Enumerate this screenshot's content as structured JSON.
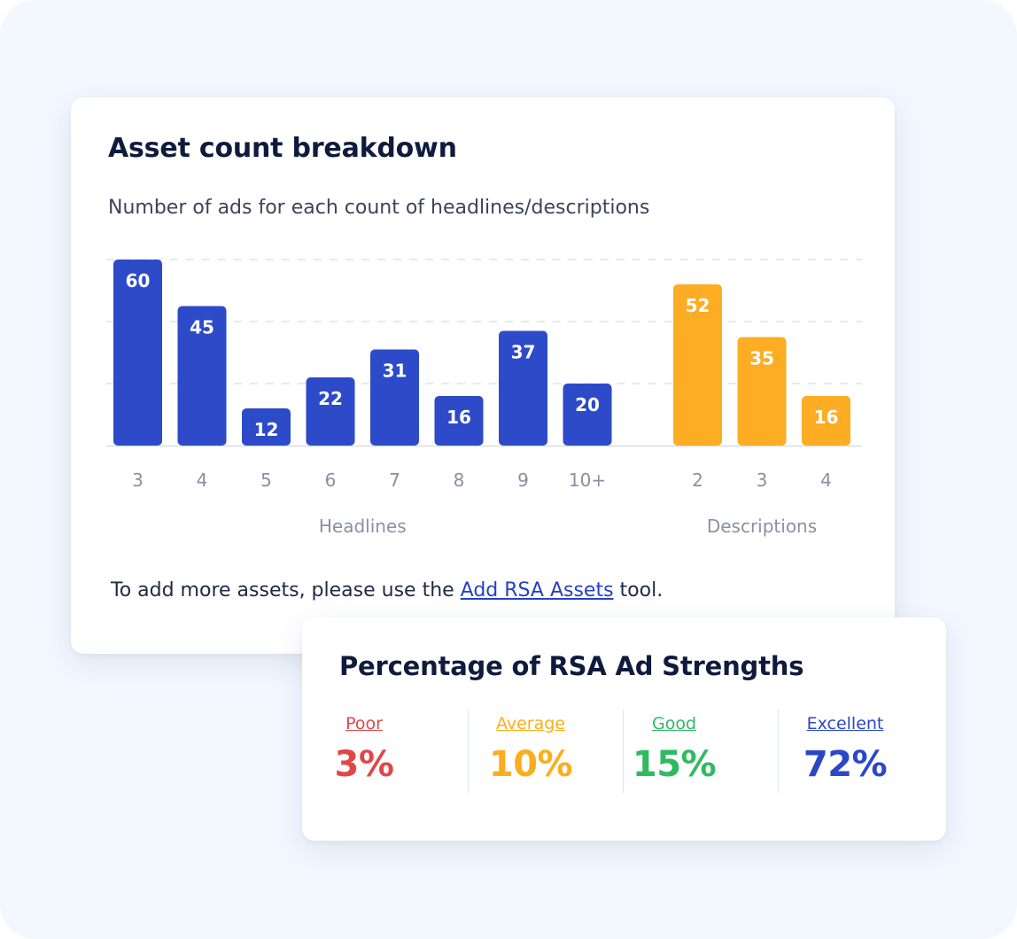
{
  "asset_card": {
    "title": "Asset count breakdown",
    "subtitle": "Number of ads for each count of headlines/descriptions",
    "footnote_prefix": "To add more assets, please use the ",
    "footnote_link": "Add RSA Assets",
    "footnote_suffix": " tool."
  },
  "strength_card": {
    "title": "Percentage of RSA Ad Strengths",
    "items": [
      {
        "label": "Poor",
        "value": "3%",
        "color": "#e04848"
      },
      {
        "label": "Average",
        "value": "10%",
        "color": "#fbad1d"
      },
      {
        "label": "Good",
        "value": "15%",
        "color": "#2fba62"
      },
      {
        "label": "Excellent",
        "value": "72%",
        "color": "#2a48c6"
      }
    ]
  },
  "chart_data": {
    "type": "bar",
    "grid": true,
    "ylim": [
      0,
      60
    ],
    "groups": [
      {
        "name": "Headlines",
        "color": "#2d4bc8",
        "categories": [
          "3",
          "4",
          "5",
          "6",
          "7",
          "8",
          "9",
          "10+"
        ],
        "values": [
          60,
          45,
          12,
          22,
          31,
          16,
          37,
          20
        ]
      },
      {
        "name": "Descriptions",
        "color": "#fcad23",
        "categories": [
          "2",
          "3",
          "4"
        ],
        "values": [
          52,
          35,
          16
        ]
      }
    ]
  }
}
